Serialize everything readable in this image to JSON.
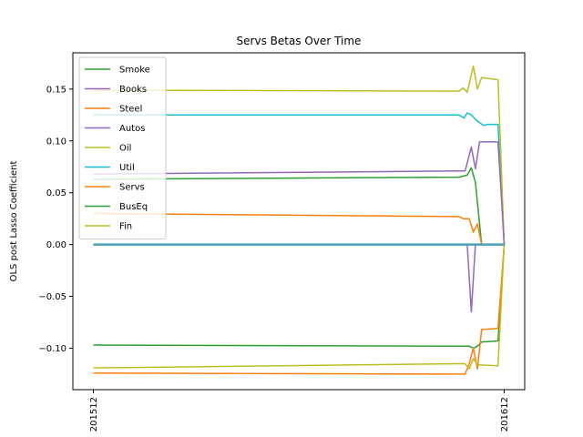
{
  "chart_data": {
    "type": "line",
    "title": "Servs Betas Over Time",
    "xlabel": "",
    "ylabel": "OLS post Lasso Coefficient",
    "x_ticks": [
      {
        "value": 0,
        "label": "201512"
      },
      {
        "value": 1,
        "label": "201612"
      }
    ],
    "xlim": [
      -0.05,
      1.05
    ],
    "ylim": [
      -0.14,
      0.185
    ],
    "y_ticks": [
      {
        "value": -0.1,
        "label": "−0.10"
      },
      {
        "value": -0.05,
        "label": "−0.05"
      },
      {
        "value": 0.0,
        "label": "0.00"
      },
      {
        "value": 0.05,
        "label": "0.05"
      },
      {
        "value": 0.1,
        "label": "0.10"
      },
      {
        "value": 0.15,
        "label": "0.15"
      }
    ],
    "grid": false,
    "legend_position": "upper-left",
    "legend": [
      {
        "name": "Smoke",
        "color": "#2ca02c"
      },
      {
        "name": "Books",
        "color": "#9467bd"
      },
      {
        "name": "Steel",
        "color": "#ff7f0e"
      },
      {
        "name": "Autos",
        "color": "#9467bd"
      },
      {
        "name": "Oil",
        "color": "#bcbd22"
      },
      {
        "name": "Util",
        "color": "#17becf"
      },
      {
        "name": "Servs",
        "color": "#ff7f0e"
      },
      {
        "name": "BusEq",
        "color": "#2ca02c"
      },
      {
        "name": "Fin",
        "color": "#bcbd22"
      }
    ],
    "lines": [
      {
        "color": "#17becf",
        "points": [
          [
            0,
            0.125
          ],
          [
            0.89,
            0.125
          ],
          [
            0.902,
            0.122
          ],
          [
            0.91,
            0.127
          ],
          [
            0.92,
            0.125
          ],
          [
            0.935,
            0.119
          ],
          [
            0.95,
            0.115
          ],
          [
            0.96,
            0.116
          ],
          [
            0.985,
            0.116
          ],
          [
            1,
            0
          ]
        ]
      },
      {
        "color": "#bcbd22",
        "points": [
          [
            0,
            0.149
          ],
          [
            0.89,
            0.148
          ],
          [
            0.9,
            0.151
          ],
          [
            0.91,
            0.147
          ],
          [
            0.925,
            0.172
          ],
          [
            0.935,
            0.15
          ],
          [
            0.945,
            0.161
          ],
          [
            0.985,
            0.159
          ],
          [
            1,
            0
          ]
        ]
      },
      {
        "color": "#9467bd",
        "points": [
          [
            0,
            0.068
          ],
          [
            0.89,
            0.071
          ],
          [
            0.905,
            0.071
          ],
          [
            0.92,
            0.094
          ],
          [
            0.93,
            0.073
          ],
          [
            0.94,
            0.099
          ],
          [
            0.985,
            0.099
          ],
          [
            1,
            0
          ]
        ]
      },
      {
        "color": "#2ca02c",
        "points": [
          [
            0,
            0.063
          ],
          [
            0.89,
            0.065
          ],
          [
            0.91,
            0.067
          ],
          [
            0.92,
            0.074
          ],
          [
            0.93,
            0.06
          ],
          [
            0.945,
            0
          ],
          [
            1,
            0
          ]
        ]
      },
      {
        "color": "#ff7f0e",
        "points": [
          [
            0,
            0.03
          ],
          [
            0.89,
            0.027
          ],
          [
            0.9,
            0.025
          ],
          [
            0.915,
            0.025
          ],
          [
            0.925,
            0.012
          ],
          [
            0.935,
            0.02
          ],
          [
            0.945,
            0
          ],
          [
            1,
            0
          ]
        ]
      },
      {
        "color": "#9467bd",
        "points": [
          [
            0,
            0
          ],
          [
            0.91,
            0
          ],
          [
            0.92,
            -0.065
          ],
          [
            0.93,
            0
          ],
          [
            1,
            0
          ]
        ]
      },
      {
        "color": "#2ca02c",
        "points": [
          [
            0,
            -0.097
          ],
          [
            0.89,
            -0.098
          ],
          [
            0.915,
            -0.098
          ],
          [
            0.925,
            -0.1
          ],
          [
            0.935,
            -0.098
          ],
          [
            0.945,
            -0.094
          ],
          [
            0.985,
            -0.093
          ],
          [
            1,
            0
          ]
        ]
      },
      {
        "color": "#ff7f0e",
        "points": [
          [
            0,
            -0.124
          ],
          [
            0.89,
            -0.125
          ],
          [
            0.905,
            -0.125
          ],
          [
            0.915,
            -0.115
          ],
          [
            0.925,
            -0.1
          ],
          [
            0.935,
            -0.12
          ],
          [
            0.945,
            -0.082
          ],
          [
            0.985,
            -0.081
          ],
          [
            1,
            0
          ]
        ]
      },
      {
        "color": "#bcbd22",
        "points": [
          [
            0,
            -0.119
          ],
          [
            0.89,
            -0.115
          ],
          [
            0.905,
            -0.115
          ],
          [
            0.915,
            -0.12
          ],
          [
            0.925,
            -0.11
          ],
          [
            0.935,
            -0.116
          ],
          [
            0.985,
            -0.117
          ],
          [
            1,
            0
          ]
        ]
      },
      {
        "color": "#4a9fb3",
        "width": 2.5,
        "points": [
          [
            0,
            0
          ],
          [
            1,
            0
          ]
        ]
      }
    ]
  }
}
